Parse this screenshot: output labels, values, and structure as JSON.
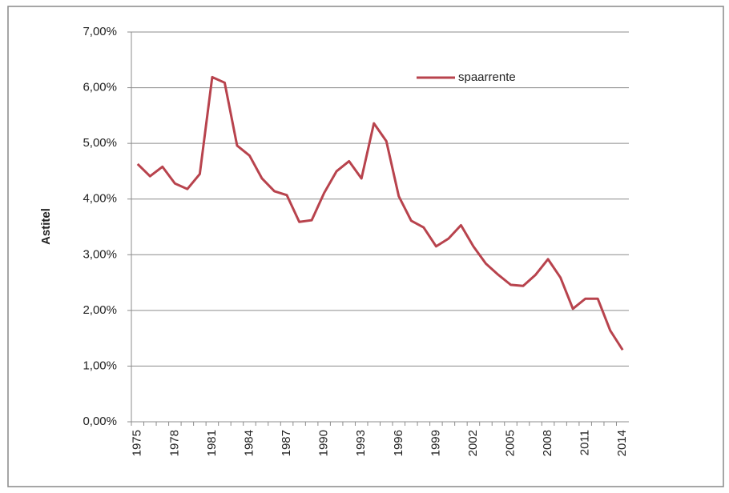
{
  "chart_data": {
    "type": "line",
    "y_axis_label": "Astitel",
    "categories": [
      "1975",
      null,
      null,
      "1978",
      null,
      null,
      "1981",
      null,
      null,
      "1984",
      null,
      null,
      "1987",
      null,
      null,
      "1990",
      null,
      null,
      "1993",
      null,
      null,
      "1996",
      null,
      null,
      "1999",
      null,
      null,
      "2002",
      null,
      null,
      "2005",
      null,
      null,
      "2008",
      null,
      null,
      "2011",
      null,
      null,
      "2014"
    ],
    "series": [
      {
        "name": "spaarrente",
        "color": "#b8434d",
        "values": [
          4.63,
          4.41,
          4.58,
          4.28,
          4.18,
          4.45,
          6.19,
          6.09,
          4.96,
          4.78,
          4.37,
          4.14,
          4.07,
          3.59,
          3.62,
          4.11,
          4.5,
          4.68,
          4.37,
          5.36,
          5.04,
          4.05,
          3.61,
          3.49,
          3.15,
          3.29,
          3.53,
          3.15,
          2.84,
          2.64,
          2.46,
          2.44,
          2.64,
          2.92,
          2.59,
          2.03,
          2.21,
          2.21,
          1.64,
          1.29
        ]
      }
    ],
    "ylim": [
      0,
      7
    ],
    "yticks": [
      {
        "value": 0,
        "label": "0,00%"
      },
      {
        "value": 1,
        "label": "1,00%"
      },
      {
        "value": 2,
        "label": "2,00%"
      },
      {
        "value": 3,
        "label": "3,00%"
      },
      {
        "value": 4,
        "label": "4,00%"
      },
      {
        "value": 5,
        "label": "5,00%"
      },
      {
        "value": 6,
        "label": "6,00%"
      },
      {
        "value": 7,
        "label": "7,00%"
      }
    ],
    "grid": true
  }
}
